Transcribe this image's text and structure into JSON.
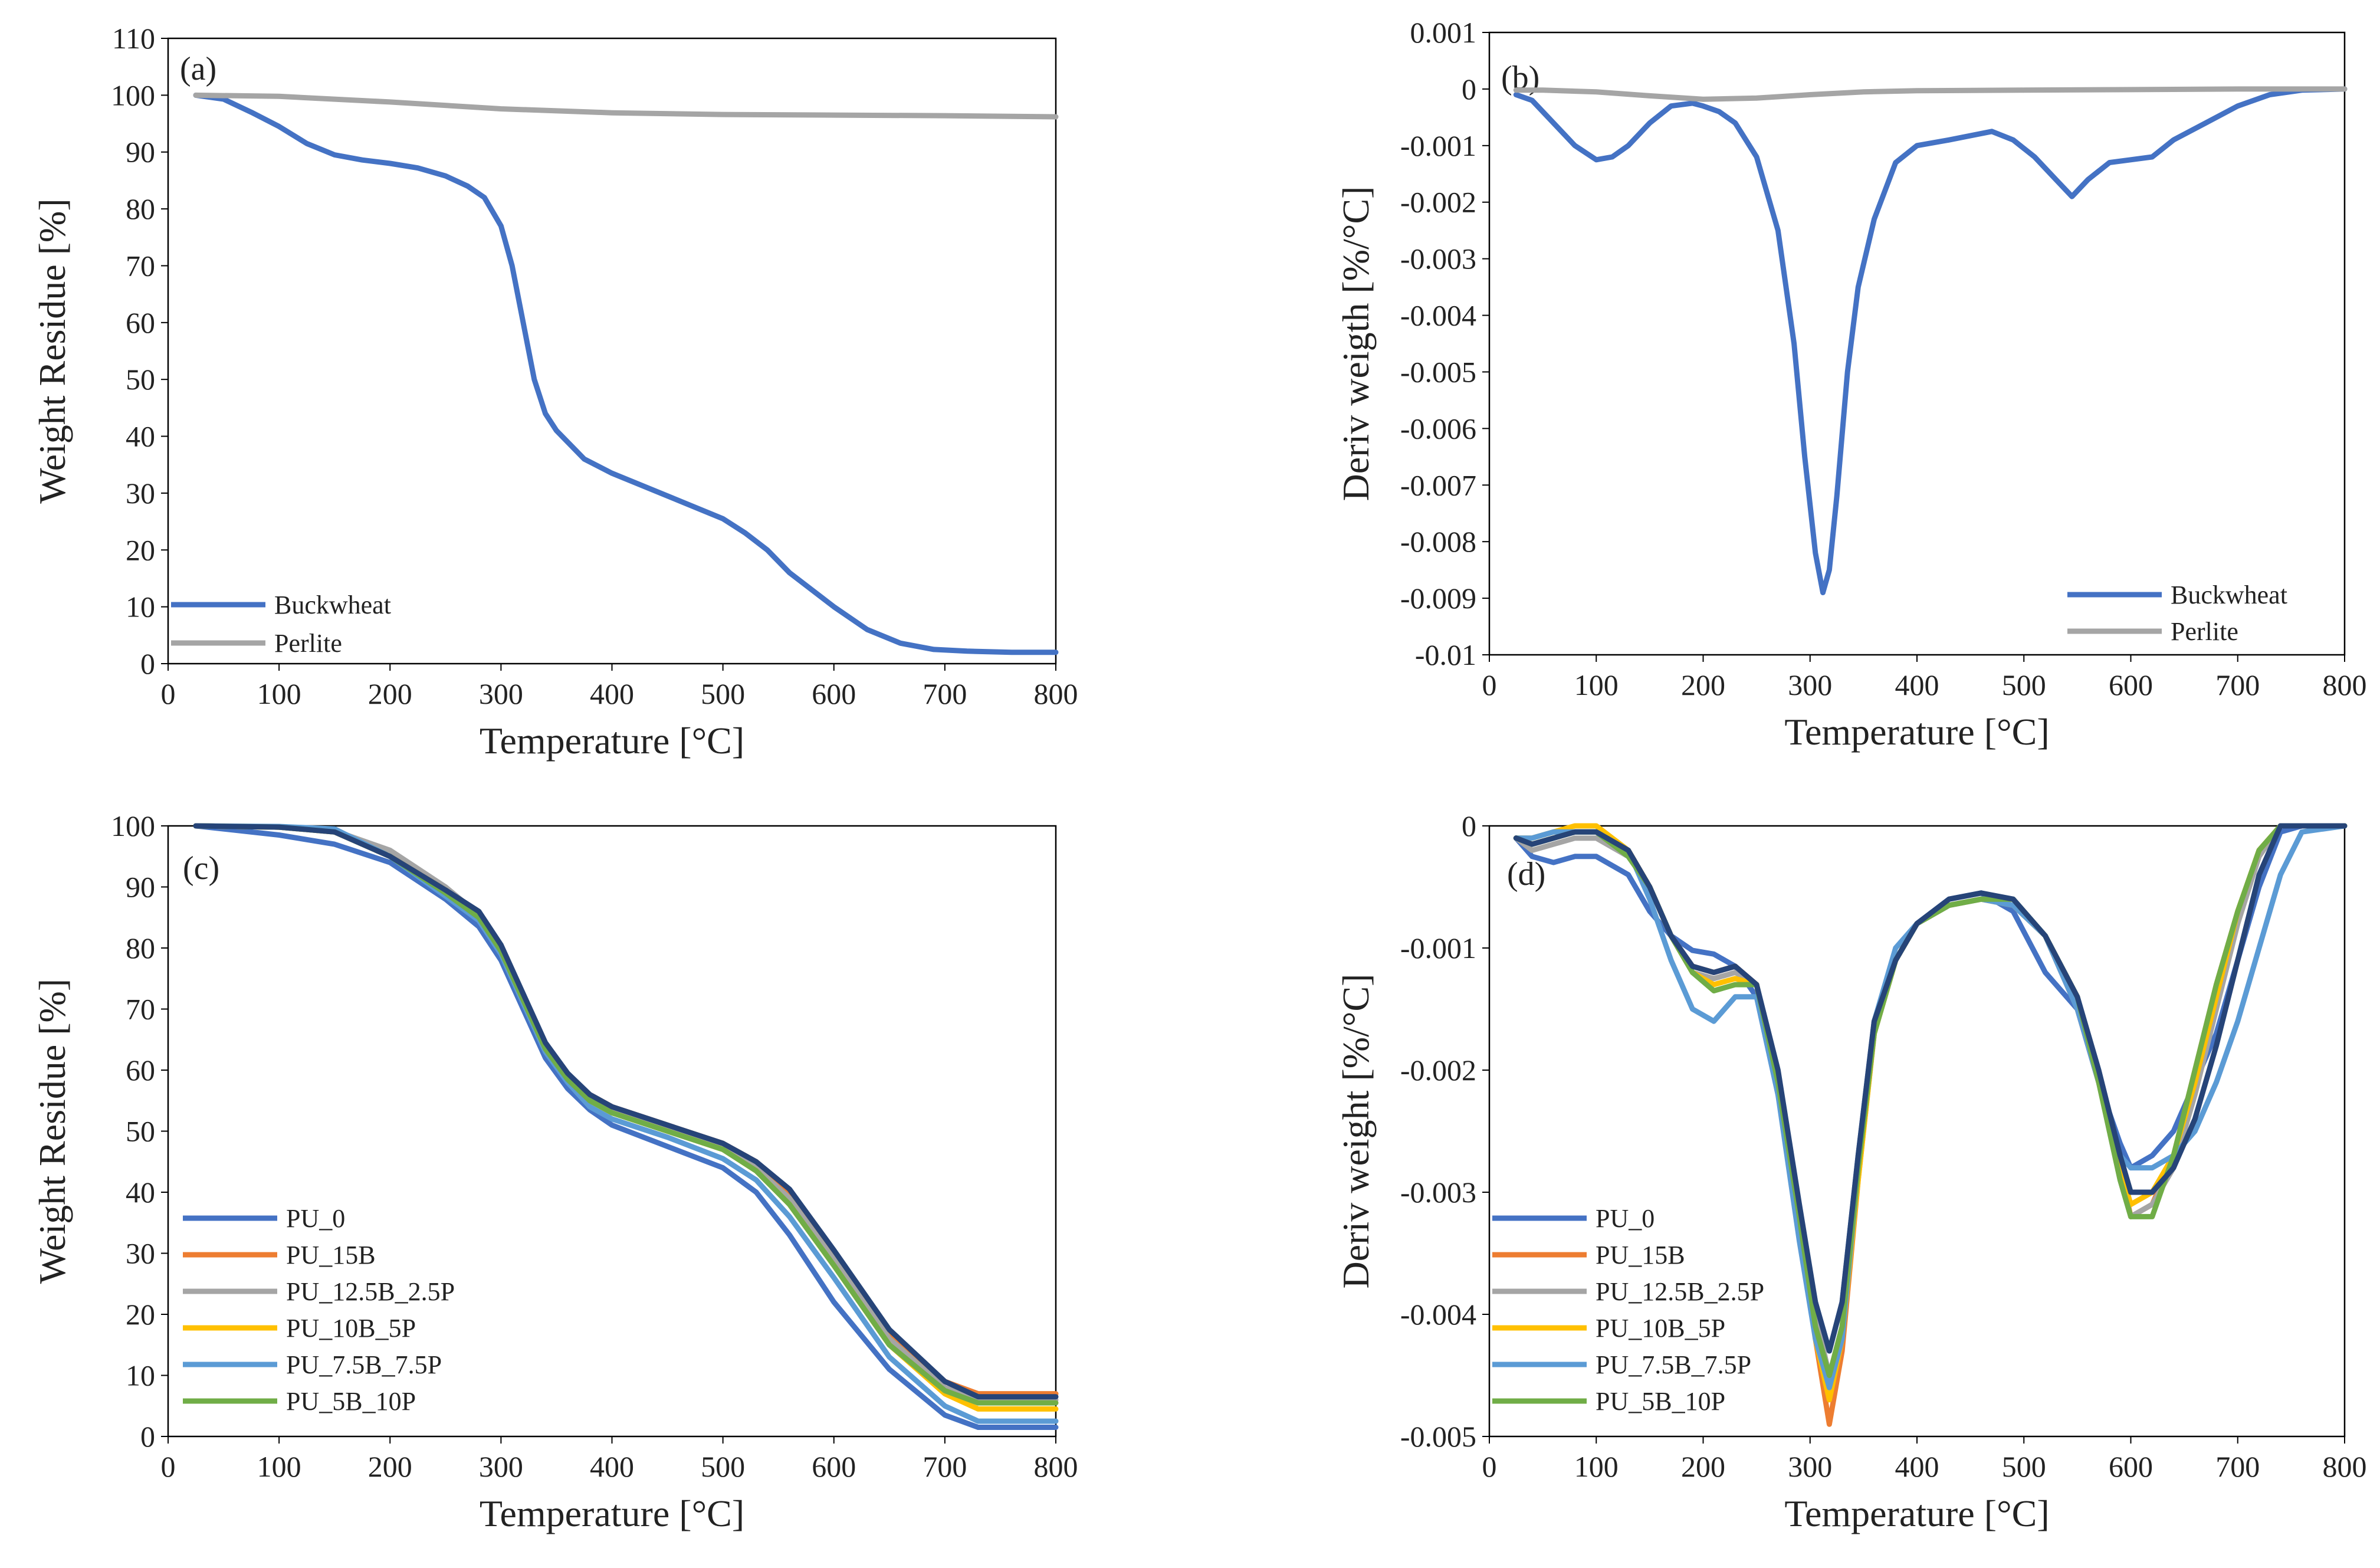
{
  "figure": {
    "panels": 4
  },
  "chart_data": [
    {
      "panel_label": "(a)",
      "type": "line",
      "xlabel": "Temperature [°C]",
      "ylabel": "Weight Residue [%]",
      "xlim": [
        0,
        800
      ],
      "ylim": [
        0,
        110
      ],
      "xticks": [
        0,
        100,
        200,
        300,
        400,
        500,
        600,
        700,
        800
      ],
      "yticks": [
        0,
        10,
        20,
        30,
        40,
        50,
        60,
        70,
        80,
        90,
        100,
        110
      ],
      "legend": "bottom-left",
      "grid": false,
      "series": [
        {
          "name": "Buckwheat",
          "color": "#4472C4",
          "x": [
            25,
            50,
            75,
            100,
            125,
            150,
            175,
            200,
            225,
            250,
            270,
            285,
            300,
            310,
            320,
            330,
            340,
            350,
            375,
            400,
            450,
            500,
            520,
            540,
            560,
            600,
            630,
            660,
            690,
            720,
            760,
            800
          ],
          "y": [
            100,
            99.3,
            97,
            94.5,
            91.5,
            89.5,
            88.6,
            88,
            87.2,
            85.8,
            84,
            82,
            77,
            70,
            60,
            50,
            44,
            41,
            36,
            33.5,
            29.5,
            25.5,
            23,
            20,
            16,
            10,
            6,
            3.6,
            2.5,
            2.2,
            2.0,
            2.0
          ]
        },
        {
          "name": "Perlite",
          "color": "#A5A5A5",
          "x": [
            25,
            100,
            200,
            300,
            400,
            500,
            600,
            700,
            800
          ],
          "y": [
            100,
            99.8,
            98.8,
            97.6,
            96.9,
            96.6,
            96.5,
            96.4,
            96.2
          ]
        }
      ]
    },
    {
      "panel_label": "(b)",
      "type": "line",
      "xlabel": "Temperature [°C]",
      "ylabel": "Deriv weigth [%/°C]",
      "xlim": [
        0,
        800
      ],
      "ylim": [
        -0.01,
        0.001
      ],
      "xticks": [
        0,
        100,
        200,
        300,
        400,
        500,
        600,
        700,
        800
      ],
      "yticks": [
        0.001,
        0,
        -0.001,
        -0.002,
        -0.003,
        -0.004,
        -0.005,
        -0.006,
        -0.007,
        -0.008,
        -0.009,
        -0.01
      ],
      "ytick_labels": [
        "0.001",
        "0",
        "-0.001",
        "-0.002",
        "-0.003",
        "-0.004",
        "-0.005",
        "-0.006",
        "-0.007",
        "-0.008",
        "-0.009",
        "-0.01"
      ],
      "legend": "bottom-right",
      "grid": false,
      "series": [
        {
          "name": "Buckwheat",
          "color": "#4472C4",
          "x": [
            25,
            40,
            60,
            80,
            100,
            115,
            130,
            150,
            170,
            190,
            200,
            215,
            230,
            250,
            270,
            285,
            295,
            305,
            312,
            318,
            325,
            335,
            345,
            360,
            380,
            400,
            430,
            470,
            490,
            510,
            530,
            545,
            560,
            580,
            600,
            620,
            640,
            670,
            700,
            730,
            760,
            800
          ],
          "y": [
            -0.0001,
            -0.0002,
            -0.0006,
            -0.001,
            -0.00125,
            -0.0012,
            -0.001,
            -0.0006,
            -0.0003,
            -0.00025,
            -0.0003,
            -0.0004,
            -0.0006,
            -0.0012,
            -0.0025,
            -0.0045,
            -0.0065,
            -0.0082,
            -0.0089,
            -0.0085,
            -0.0072,
            -0.005,
            -0.0035,
            -0.0023,
            -0.0013,
            -0.001,
            -0.0009,
            -0.00075,
            -0.0009,
            -0.0012,
            -0.0016,
            -0.0019,
            -0.0016,
            -0.0013,
            -0.00125,
            -0.0012,
            -0.0009,
            -0.0006,
            -0.0003,
            -0.0001,
            -2e-05,
            0
          ]
        },
        {
          "name": "Perlite",
          "color": "#A5A5A5",
          "x": [
            25,
            50,
            100,
            150,
            200,
            250,
            300,
            350,
            400,
            500,
            600,
            700,
            800
          ],
          "y": [
            -2e-05,
            -2e-05,
            -5e-05,
            -0.00012,
            -0.00018,
            -0.00016,
            -0.0001,
            -5e-05,
            -3e-05,
            -2e-05,
            -1e-05,
            0,
            0
          ]
        }
      ]
    },
    {
      "panel_label": "(c)",
      "type": "line",
      "xlabel": "Temperature [°C]",
      "ylabel": "Weight Residue [%]",
      "xlim": [
        0,
        800
      ],
      "ylim": [
        0,
        100
      ],
      "xticks": [
        0,
        100,
        200,
        300,
        400,
        500,
        600,
        700,
        800
      ],
      "yticks": [
        0,
        10,
        20,
        30,
        40,
        50,
        60,
        70,
        80,
        90,
        100
      ],
      "legend": "bottom-left",
      "grid": false,
      "x": [
        25,
        100,
        150,
        200,
        250,
        280,
        300,
        320,
        340,
        360,
        380,
        400,
        450,
        500,
        530,
        560,
        600,
        650,
        700,
        730,
        760,
        800
      ],
      "series": [
        {
          "name": "PU_0",
          "color": "#4472C4",
          "y": [
            100,
            98.5,
            97,
            94,
            88,
            83.5,
            78,
            70,
            62,
            57,
            53.5,
            51,
            47.5,
            44,
            40,
            33,
            22,
            11,
            3.5,
            1.5,
            1.5,
            1.5
          ]
        },
        {
          "name": "PU_15B",
          "color": "#ED7D31",
          "y": [
            100,
            99.8,
            99,
            95,
            89.5,
            85.5,
            80,
            72,
            64,
            59,
            56,
            54,
            51,
            48,
            45,
            40,
            30,
            17,
            9,
            7,
            7,
            7
          ]
        },
        {
          "name": "PU_12.5B_2.5P",
          "color": "#A5A5A5",
          "y": [
            100,
            99.8,
            99.2,
            96,
            90,
            85.5,
            80,
            72,
            64,
            59,
            55.5,
            53.5,
            50.5,
            47.5,
            44,
            39,
            29,
            16,
            8,
            6,
            6,
            6
          ]
        },
        {
          "name": "PU_10B_5P",
          "color": "#FFC000",
          "y": [
            100,
            99.8,
            99,
            95,
            89.5,
            85.5,
            79.5,
            71.5,
            63.5,
            58.5,
            55,
            53,
            50,
            47,
            43.5,
            38,
            28,
            15,
            7,
            4.5,
            4.5,
            4.5
          ]
        },
        {
          "name": "PU_7.5B_7.5P",
          "color": "#5B9BD5",
          "y": [
            100,
            99.9,
            99.5,
            95,
            88.5,
            84.5,
            79,
            71,
            63,
            58,
            54,
            52,
            49,
            45.5,
            42,
            36,
            26,
            13,
            5,
            2.5,
            2.5,
            2.5
          ]
        },
        {
          "name": "PU_5B_10P",
          "color": "#70AD47",
          "y": [
            100,
            99.8,
            99,
            95,
            89,
            85,
            79.5,
            71.5,
            63.5,
            58.5,
            55,
            53,
            50,
            47,
            43.5,
            38,
            28,
            15,
            7.5,
            5.5,
            5.5,
            5.5
          ]
        },
        {
          "name": "",
          "color": "#264478",
          "y": [
            100,
            99.8,
            99,
            95,
            89.5,
            86,
            80.5,
            72.5,
            64.5,
            59.5,
            56,
            54,
            51,
            48,
            45,
            40.5,
            30.5,
            17.5,
            9,
            6.5,
            6.5,
            6.5
          ]
        }
      ]
    },
    {
      "panel_label": "(d)",
      "type": "line",
      "xlabel": "Temperature [°C]",
      "ylabel": "Deriv weight [%/°C]",
      "xlim": [
        0,
        800
      ],
      "ylim": [
        -0.005,
        0
      ],
      "xticks": [
        0,
        100,
        200,
        300,
        400,
        500,
        600,
        700,
        800
      ],
      "yticks": [
        0,
        -0.001,
        -0.002,
        -0.003,
        -0.004,
        -0.005
      ],
      "ytick_labels": [
        "0",
        "-0.001",
        "-0.002",
        "-0.003",
        "-0.004",
        "-0.005"
      ],
      "legend": "bottom-left",
      "grid": false,
      "x": [
        25,
        40,
        60,
        80,
        100,
        130,
        150,
        170,
        190,
        210,
        230,
        250,
        270,
        290,
        305,
        318,
        330,
        345,
        360,
        380,
        400,
        430,
        460,
        490,
        520,
        550,
        570,
        590,
        600,
        620,
        640,
        660,
        680,
        700,
        720,
        740,
        760,
        800
      ],
      "series": [
        {
          "name": "PU_0",
          "color": "#4472C4",
          "y": [
            -0.0001,
            -0.00025,
            -0.0003,
            -0.00025,
            -0.00025,
            -0.0004,
            -0.0007,
            -0.0009,
            -0.00102,
            -0.00105,
            -0.00115,
            -0.0014,
            -0.0022,
            -0.0032,
            -0.0039,
            -0.0043,
            -0.0039,
            -0.0027,
            -0.0016,
            -0.0011,
            -0.0008,
            -0.0006,
            -0.00055,
            -0.0007,
            -0.0012,
            -0.0015,
            -0.0021,
            -0.0026,
            -0.0028,
            -0.0027,
            -0.0025,
            -0.0021,
            -0.0017,
            -0.0011,
            -0.0005,
            -5e-05,
            0,
            0
          ]
        },
        {
          "name": "PU_15B",
          "color": "#ED7D31",
          "y": [
            -0.0001,
            -0.00015,
            -0.0001,
            -5e-05,
            -5e-05,
            -0.0002,
            -0.0005,
            -0.0009,
            -0.00115,
            -0.0012,
            -0.00115,
            -0.0013,
            -0.0021,
            -0.0033,
            -0.0042,
            -0.0049,
            -0.0043,
            -0.0029,
            -0.0017,
            -0.0011,
            -0.0008,
            -0.00065,
            -0.0006,
            -0.00065,
            -0.0009,
            -0.0015,
            -0.0021,
            -0.0028,
            -0.0032,
            -0.0031,
            -0.0027,
            -0.002,
            -0.0013,
            -0.0007,
            -0.0002,
            0,
            0,
            0
          ]
        },
        {
          "name": "PU_12.5B_2.5P",
          "color": "#A5A5A5",
          "y": [
            -0.0001,
            -0.0002,
            -0.00015,
            -0.0001,
            -0.0001,
            -0.00025,
            -0.0005,
            -0.0009,
            -0.0012,
            -0.00125,
            -0.0012,
            -0.0013,
            -0.0021,
            -0.0032,
            -0.004,
            -0.0045,
            -0.0041,
            -0.0028,
            -0.0017,
            -0.0011,
            -0.0008,
            -0.00065,
            -0.0006,
            -0.0006,
            -0.0009,
            -0.0014,
            -0.0021,
            -0.0029,
            -0.0032,
            -0.0031,
            -0.0028,
            -0.0022,
            -0.0015,
            -0.0008,
            -0.00025,
            0,
            0,
            0
          ]
        },
        {
          "name": "PU_10B_5P",
          "color": "#FFC000",
          "y": [
            -0.0001,
            -0.0001,
            -5e-05,
            0,
            0,
            -0.0002,
            -0.0005,
            -0.0009,
            -0.0012,
            -0.0013,
            -0.00125,
            -0.0013,
            -0.0021,
            -0.0033,
            -0.0042,
            -0.0047,
            -0.0042,
            -0.0029,
            -0.0017,
            -0.0011,
            -0.0008,
            -0.00065,
            -0.0006,
            -0.00065,
            -0.0009,
            -0.0014,
            -0.0021,
            -0.0028,
            -0.0031,
            -0.003,
            -0.0027,
            -0.0021,
            -0.0014,
            -0.0007,
            -0.0002,
            0,
            0,
            0
          ]
        },
        {
          "name": "PU_7.5B_7.5P",
          "color": "#5B9BD5",
          "y": [
            -0.0001,
            -0.0001,
            -5e-05,
            -5e-05,
            -5e-05,
            -0.0002,
            -0.0006,
            -0.0011,
            -0.0015,
            -0.0016,
            -0.0014,
            -0.0014,
            -0.0022,
            -0.0034,
            -0.0042,
            -0.0046,
            -0.0042,
            -0.0028,
            -0.0016,
            -0.001,
            -0.0008,
            -0.00065,
            -0.0006,
            -0.00065,
            -0.0009,
            -0.0015,
            -0.0021,
            -0.0027,
            -0.0028,
            -0.0028,
            -0.0027,
            -0.0025,
            -0.0021,
            -0.0016,
            -0.001,
            -0.0004,
            -5e-05,
            0
          ]
        },
        {
          "name": "PU_5B_10P",
          "color": "#70AD47",
          "y": [
            -0.0001,
            -0.00015,
            -0.0001,
            -5e-05,
            -5e-05,
            -0.00025,
            -0.0005,
            -0.0009,
            -0.0012,
            -0.00135,
            -0.0013,
            -0.0013,
            -0.0021,
            -0.0032,
            -0.0041,
            -0.0045,
            -0.0041,
            -0.0028,
            -0.0017,
            -0.0011,
            -0.0008,
            -0.00065,
            -0.0006,
            -0.0006,
            -0.0009,
            -0.0014,
            -0.0021,
            -0.0029,
            -0.0032,
            -0.0032,
            -0.0027,
            -0.002,
            -0.0013,
            -0.0007,
            -0.0002,
            0,
            0,
            0
          ]
        },
        {
          "name": "",
          "color": "#264478",
          "y": [
            -0.0001,
            -0.00015,
            -0.0001,
            -5e-05,
            -5e-05,
            -0.0002,
            -0.0005,
            -0.0009,
            -0.00115,
            -0.0012,
            -0.00115,
            -0.0013,
            -0.002,
            -0.0031,
            -0.0039,
            -0.0043,
            -0.0039,
            -0.0027,
            -0.0016,
            -0.0011,
            -0.0008,
            -0.0006,
            -0.00055,
            -0.0006,
            -0.0009,
            -0.0014,
            -0.002,
            -0.0027,
            -0.003,
            -0.003,
            -0.0028,
            -0.0024,
            -0.0018,
            -0.0011,
            -0.0004,
            0,
            0,
            0
          ]
        }
      ]
    }
  ]
}
